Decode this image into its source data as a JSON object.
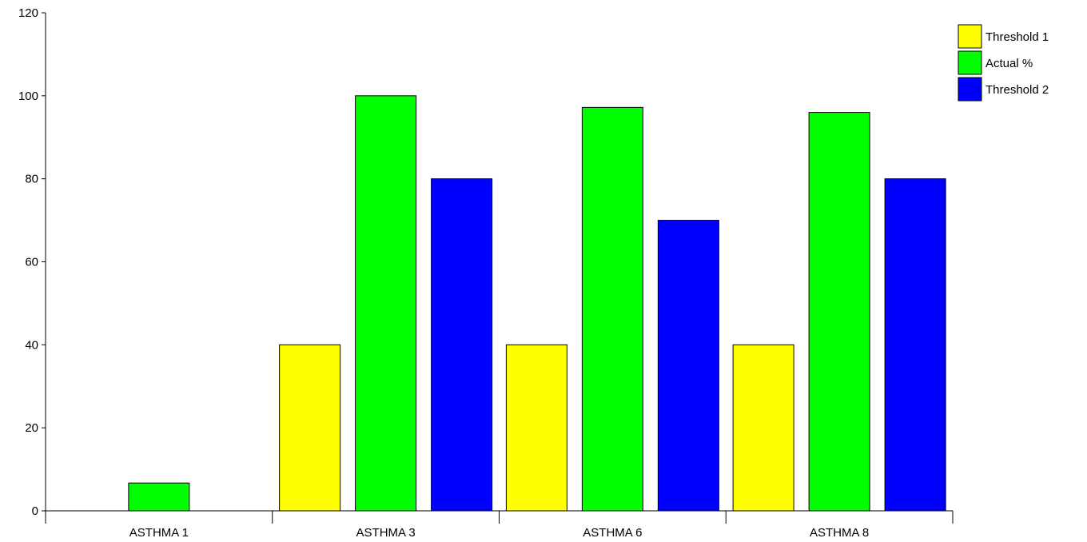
{
  "chart_data": {
    "type": "bar",
    "categories": [
      "ASTHMA 1",
      "ASTHMA 3",
      "ASTHMA 6",
      "ASTHMA 8"
    ],
    "series": [
      {
        "name": "Threshold 1",
        "color": "#ffff00",
        "values": [
          null,
          40,
          40,
          40
        ]
      },
      {
        "name": "Actual %",
        "color": "#00ff00",
        "values": [
          6.7,
          100,
          97.2,
          96
        ]
      },
      {
        "name": "Threshold 2",
        "color": "#0000ff",
        "values": [
          null,
          80,
          70,
          80
        ]
      }
    ],
    "ylim": [
      0,
      120
    ],
    "yticks": [
      0,
      20,
      40,
      60,
      80,
      100,
      120
    ],
    "grid": false,
    "legend_position": "top-right",
    "title": "",
    "xlabel": "",
    "ylabel": ""
  }
}
